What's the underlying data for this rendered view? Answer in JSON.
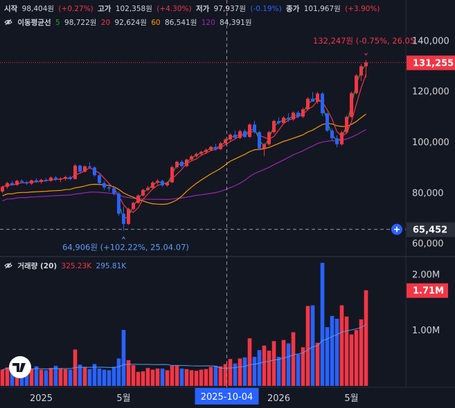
{
  "header": {
    "open_label": "시작",
    "open_value": "98,404원",
    "open_change": "(+0.27%)",
    "high_label": "고가",
    "high_value": "102,358원",
    "high_change": "(+4.30%)",
    "low_label": "저가",
    "low_value": "97,937원",
    "low_change": "(-0.19%)",
    "close_label": "종가",
    "close_value": "101,967원",
    "close_change": "(+3.90%)"
  },
  "ma": {
    "label": "이동평균선",
    "items": [
      {
        "period": "5",
        "value": "98,722원",
        "color": "#2ca02c"
      },
      {
        "period": "20",
        "value": "92,624원",
        "color": "#f23645"
      },
      {
        "period": "60",
        "value": "86,541원",
        "color": "#ff9800"
      },
      {
        "period": "120",
        "value": "84,391원",
        "color": "#9c27b0"
      }
    ]
  },
  "volume_header": {
    "label": "거래량 (20)",
    "value1": "325.23K",
    "value2": "295.81K"
  },
  "colors": {
    "up": "#f23645",
    "down": "#2962ff",
    "background": "#131722",
    "text": "#d1d4dc",
    "accent": "#2962ff"
  },
  "annotations": {
    "high": "132,247원 (-0.75%, 26.05.",
    "low": "64,906원 (+102.22%, 25.04.07)",
    "last_price": "131,255",
    "crosshair_price": "65,452",
    "last_volume": "1.71M",
    "crosshair_date": "2025-10-04"
  },
  "chart_data": [
    {
      "type": "candlestick",
      "title": "",
      "y_ticks": [
        "140,000",
        "120,000",
        "100,000",
        "80,000",
        "60,000"
      ],
      "ylim": [
        55000,
        145000
      ],
      "x_ticks": [
        {
          "label": "2025",
          "week": 8
        },
        {
          "label": "5월",
          "week": 25
        },
        {
          "label": "2026",
          "week": 57
        },
        {
          "label": "5월",
          "week": 72
        }
      ],
      "crosshair_week": 46,
      "crosshair_price": 65452,
      "last_price": 131255,
      "candles": [
        [
          80400,
          82600,
          79800,
          82200
        ],
        [
          82200,
          84200,
          81500,
          83700
        ],
        [
          83700,
          84600,
          82600,
          83000
        ],
        [
          83000,
          85000,
          82600,
          84600
        ],
        [
          84600,
          85200,
          83600,
          84100
        ],
        [
          84100,
          84600,
          83000,
          83500
        ],
        [
          83500,
          85100,
          83000,
          84800
        ],
        [
          84800,
          85600,
          83800,
          84200
        ],
        [
          84200,
          85400,
          83500,
          85000
        ],
        [
          85000,
          85700,
          84100,
          84600
        ],
        [
          84600,
          86300,
          84200,
          85900
        ],
        [
          85900,
          86500,
          84600,
          85100
        ],
        [
          85100,
          86000,
          84000,
          85500
        ],
        [
          85500,
          86600,
          84700,
          86100
        ],
        [
          86100,
          86600,
          84900,
          85300
        ],
        [
          85300,
          91200,
          85100,
          90600
        ],
        [
          90600,
          91000,
          87800,
          88200
        ],
        [
          88200,
          90700,
          87900,
          90300
        ],
        [
          90300,
          92000,
          89300,
          89900
        ],
        [
          89900,
          90400,
          86200,
          86800
        ],
        [
          86800,
          87300,
          82800,
          83700
        ],
        [
          83700,
          84500,
          81000,
          82000
        ],
        [
          82000,
          83500,
          80400,
          81600
        ],
        [
          81600,
          82300,
          78800,
          79600
        ],
        [
          79600,
          80400,
          70800,
          71600
        ],
        [
          71600,
          74500,
          64906,
          67600
        ],
        [
          67600,
          74000,
          67200,
          73500
        ],
        [
          73500,
          76400,
          73000,
          75900
        ],
        [
          75900,
          79300,
          75500,
          78800
        ],
        [
          78800,
          81500,
          78400,
          81000
        ],
        [
          81000,
          82600,
          80500,
          81800
        ],
        [
          81800,
          84500,
          81400,
          83900
        ],
        [
          83900,
          85200,
          83200,
          84600
        ],
        [
          84600,
          85000,
          82300,
          82800
        ],
        [
          82800,
          84300,
          82300,
          84000
        ],
        [
          84000,
          90600,
          83700,
          90000
        ],
        [
          90000,
          92500,
          89400,
          92100
        ],
        [
          92100,
          92800,
          89800,
          90400
        ],
        [
          90400,
          93300,
          90000,
          93000
        ],
        [
          93000,
          94800,
          92500,
          94300
        ],
        [
          94300,
          95700,
          93700,
          95200
        ],
        [
          95200,
          96500,
          94400,
          96000
        ],
        [
          96000,
          97400,
          95100,
          96800
        ],
        [
          96800,
          98400,
          96300,
          98000
        ],
        [
          98000,
          99200,
          96500,
          97100
        ],
        [
          97100,
          100000,
          96700,
          99400
        ],
        [
          99400,
          101400,
          99000,
          100900
        ],
        [
          100900,
          103300,
          99900,
          102800
        ],
        [
          102800,
          104400,
          102100,
          101500
        ],
        [
          101500,
          104700,
          101000,
          104200
        ],
        [
          104200,
          105000,
          101400,
          101900
        ],
        [
          101900,
          107300,
          101500,
          106800
        ],
        [
          106800,
          108300,
          103200,
          103800
        ],
        [
          103800,
          104300,
          96600,
          97400
        ],
        [
          97400,
          99500,
          94300,
          99000
        ],
        [
          99000,
          104300,
          98400,
          103800
        ],
        [
          103800,
          108700,
          103300,
          108200
        ],
        [
          108200,
          109600,
          106700,
          107400
        ],
        [
          107400,
          110100,
          106900,
          109500
        ],
        [
          109500,
          111300,
          107800,
          108800
        ],
        [
          108800,
          112000,
          108200,
          111500
        ],
        [
          111500,
          112300,
          109300,
          109900
        ],
        [
          109900,
          113500,
          109400,
          112800
        ],
        [
          112800,
          117600,
          112300,
          117000
        ],
        [
          117000,
          119600,
          116200,
          115800
        ],
        [
          115800,
          119700,
          115000,
          119000
        ],
        [
          119000,
          119700,
          110100,
          111200
        ],
        [
          111200,
          111600,
          103900,
          104400
        ],
        [
          104400,
          105200,
          100400,
          101400
        ],
        [
          101400,
          102600,
          97800,
          99000
        ],
        [
          99000,
          104300,
          98500,
          103700
        ],
        [
          103700,
          110400,
          103100,
          109800
        ],
        [
          109800,
          119800,
          109400,
          119200
        ],
        [
          119200,
          126700,
          118700,
          126100
        ],
        [
          126100,
          130600,
          124000,
          129800
        ],
        [
          129800,
          132247,
          125300,
          131255
        ]
      ]
    },
    {
      "type": "bar",
      "title": "",
      "y_ticks": [
        "2.00M",
        "1.00M"
      ],
      "ylim": [
        0,
        2300000
      ],
      "values": [
        290000,
        330000,
        370000,
        300000,
        270000,
        250000,
        310000,
        350000,
        290000,
        280000,
        320000,
        360000,
        310000,
        300000,
        290000,
        650000,
        380000,
        340000,
        300000,
        390000,
        310000,
        290000,
        280000,
        340000,
        490000,
        1000000,
        460000,
        370000,
        250000,
        260000,
        320000,
        290000,
        310000,
        310000,
        280000,
        360000,
        360000,
        310000,
        300000,
        280000,
        270000,
        290000,
        300000,
        340000,
        360000,
        350000,
        390000,
        480000,
        400000,
        490000,
        510000,
        850000,
        520000,
        640000,
        720000,
        630000,
        800000,
        520000,
        820000,
        760000,
        960000,
        560000,
        690000,
        1430000,
        1440000,
        770000,
        2200000,
        1050000,
        1250000,
        1200000,
        1440000,
        1240000,
        920000,
        1000000,
        1190000,
        1710000
      ]
    }
  ]
}
